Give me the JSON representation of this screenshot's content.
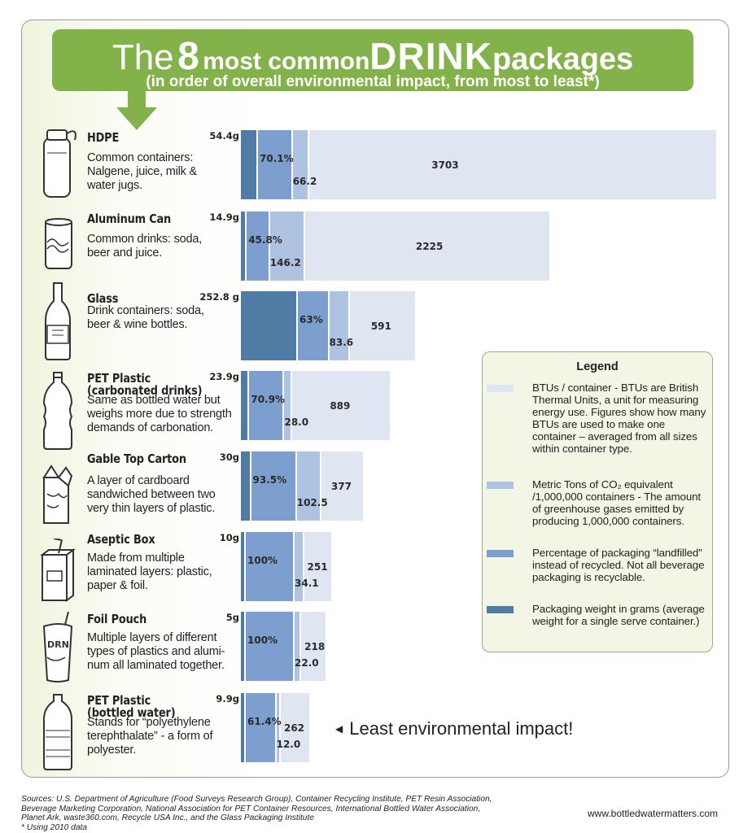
{
  "header": {
    "title_the": "The",
    "title_num": "8",
    "title_most": "most common",
    "title_drink": "DRINK",
    "title_packages": "packages",
    "subtitle": "(in order of overall environmental impact, from most to least*)"
  },
  "colors": {
    "banner": "#83b24a",
    "weight": "#4f7ba4",
    "landfill": "#7d9fcf",
    "co2": "#aec3e2",
    "btu": "#dfe5f1",
    "legend_bg": "#f3f6e4"
  },
  "chart_data": {
    "type": "bar",
    "stacked": true,
    "orientation": "horizontal",
    "categories": [
      "HDPE",
      "Aluminum Can",
      "Glass",
      "PET Plastic (carbonated drinks)",
      "Gable Top Carton",
      "Aseptic Box",
      "Foil Pouch",
      "PET Plastic (bottled water)"
    ],
    "series": [
      {
        "name": "Packaging weight in grams",
        "values": [
          54.4,
          14.9,
          252.8,
          23.9,
          30,
          10,
          5,
          9.9
        ],
        "labels": [
          "54.4g",
          "14.9g",
          "252.8 g",
          "23.9g",
          "30g",
          "10g",
          "5g",
          "9.9g"
        ]
      },
      {
        "name": "Percentage of packaging \"landfilled\" instead of recycled",
        "values": [
          70.1,
          45.8,
          63,
          70.9,
          93.5,
          100,
          100,
          61.4
        ],
        "labels": [
          "70.1%",
          "45.8%",
          "63%",
          "70.9%",
          "93.5%",
          "100%",
          "100%",
          "61.4%"
        ]
      },
      {
        "name": "Metric Tons of CO2 equivalent /1,000,000 containers",
        "values": [
          66.2,
          146.2,
          83.6,
          28.0,
          102.5,
          34.1,
          22.0,
          12.0
        ],
        "labels": [
          "66.2",
          "146.2",
          "83.6",
          "28.0",
          "102.5",
          "34.1",
          "22.0",
          "12.0"
        ]
      },
      {
        "name": "BTUs / container",
        "values": [
          3703,
          2225,
          591,
          889,
          377,
          251,
          218,
          262
        ],
        "labels": [
          "3703",
          "2225",
          "591",
          "889",
          "377",
          "251",
          "218",
          "262"
        ]
      }
    ]
  },
  "packages": [
    {
      "name": "HDPE",
      "desc": "Common containers:\nNalgene, juice, milk &\nwater jugs.",
      "icon": "hdpe-bottle-icon"
    },
    {
      "name": "Aluminum Can",
      "desc": "Common drinks: soda,\nbeer and juice.",
      "icon": "aluminum-can-icon"
    },
    {
      "name": "Glass",
      "desc": "Drink containers: soda,\nbeer & wine bottles.",
      "icon": "glass-bottle-icon"
    },
    {
      "name": "PET Plastic\n(carbonated drinks)",
      "desc": "Same as bottled water but\nweighs more due to strength\ndemands of carbonation.",
      "icon": "soda-bottle-icon"
    },
    {
      "name": "Gable Top Carton",
      "desc": "A layer of cardboard\nsandwiched between two\nvery thin layers of plastic.",
      "icon": "milk-carton-icon"
    },
    {
      "name": "Aseptic Box",
      "desc": "Made from multiple\nlaminated layers: plastic,\npaper & foil.",
      "icon": "juice-box-icon"
    },
    {
      "name": "Foil Pouch",
      "desc": "Multiple layers of different\ntypes of plastics and alumi-\nnum all laminated together.",
      "icon": "foil-pouch-icon"
    },
    {
      "name": "PET Plastic\n(bottled water)",
      "desc": "Stands for “polyethylene\nterephthalate” - a form of\npolyester.",
      "icon": "water-bottle-icon"
    }
  ],
  "legend": {
    "title": "Legend",
    "entries": [
      {
        "text": "BTUs / container - BTUs are British Thermal Units, a unit for measuring energy use. Figures show how many BTUs are used to make one container – averaged from all sizes within container type."
      },
      {
        "text": "Metric Tons of CO₂ equivalent /1,000,000 containers - The amount of greenhouse gases emitted by producing 1,000,000 containers."
      },
      {
        "text": "Percentage of packaging “landfilled” instead of recycled. Not all beverage packaging is recyclable."
      },
      {
        "text": "Packaging weight in grams (average weight for a single serve container.)"
      }
    ]
  },
  "least_impact": "Least environmental impact!",
  "sources": {
    "line1": "Sources: U.S. Department of Agriculture (Food Surveys Research Group), Container Recycling Institute, PET Resin Association,",
    "line2": "Beverage Marketing Corporation, National Association for PET Container Resources, International Bottled Water Association,",
    "line3": "Planet Ark, waste360.com, Recycle USA Inc., and the Glass Packaging Institute",
    "line4": "* Using 2010 data"
  },
  "website": "www.bottledwatermatters.com"
}
